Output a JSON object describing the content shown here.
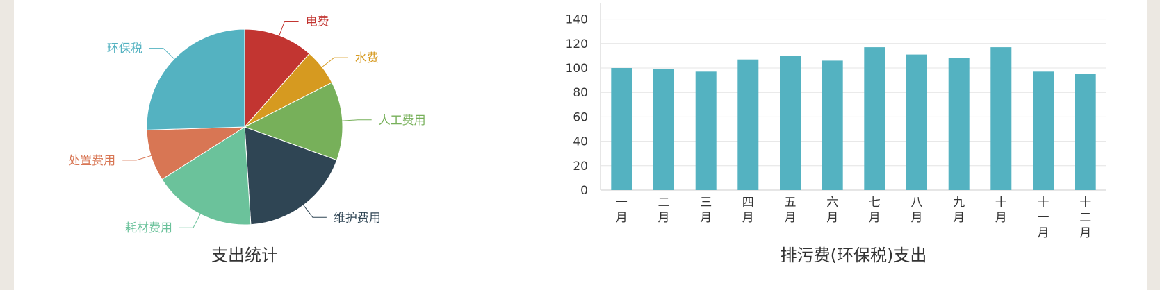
{
  "chart_data": [
    {
      "type": "pie",
      "title": "支出统计",
      "slices": [
        {
          "name": "电费",
          "value": 11.5,
          "color": "#c23531"
        },
        {
          "name": "水费",
          "value": 6.0,
          "color": "#d69a20"
        },
        {
          "name": "人工费用",
          "value": 13.0,
          "color": "#77b05a"
        },
        {
          "name": "维护费用",
          "value": 18.5,
          "color": "#2f4554"
        },
        {
          "name": "耗材费用",
          "value": 17.0,
          "color": "#6bc29b"
        },
        {
          "name": "处置费用",
          "value": 8.5,
          "color": "#d87654"
        },
        {
          "name": "环保税",
          "value": 25.5,
          "color": "#54b2c1"
        }
      ]
    },
    {
      "type": "bar",
      "title": "排污费(环保税)支出",
      "categories": [
        "一月",
        "二月",
        "三月",
        "四月",
        "五月",
        "六月",
        "七月",
        "八月",
        "九月",
        "十月",
        "十一月",
        "十二月"
      ],
      "category_lines": [
        [
          "一",
          "月"
        ],
        [
          "二",
          "月"
        ],
        [
          "三",
          "月"
        ],
        [
          "四",
          "月"
        ],
        [
          "五",
          "月"
        ],
        [
          "六",
          "月"
        ],
        [
          "七",
          "月"
        ],
        [
          "八",
          "月"
        ],
        [
          "九",
          "月"
        ],
        [
          "十",
          "月"
        ],
        [
          "十",
          "一",
          "月"
        ],
        [
          "十",
          "二",
          "月"
        ]
      ],
      "values": [
        100,
        99,
        97,
        107,
        110,
        106,
        117,
        111,
        108,
        117,
        97,
        95
      ],
      "yticks": [
        0,
        20,
        40,
        60,
        80,
        100,
        120,
        140
      ],
      "ylim": [
        0,
        150
      ],
      "grid": true,
      "bar_color": "#54b2c1"
    }
  ]
}
